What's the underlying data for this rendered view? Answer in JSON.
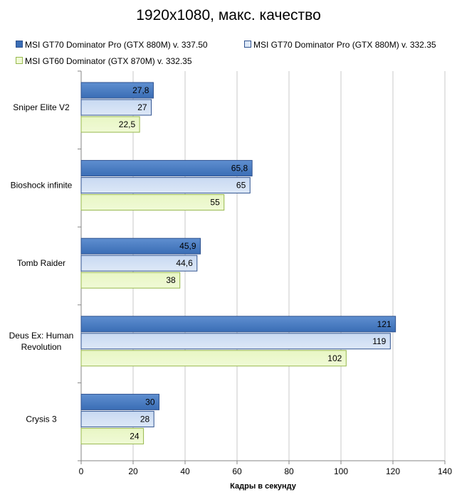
{
  "chart_data": {
    "type": "bar",
    "orientation": "horizontal",
    "title": "1920x1080, макс. качество",
    "xlabel": "Кадры  в секунду",
    "ylabel": "",
    "xlim": [
      0,
      140
    ],
    "x_ticks": [
      0,
      20,
      40,
      60,
      80,
      100,
      120,
      140
    ],
    "grid": true,
    "legend_position": "top",
    "categories": [
      {
        "lines": [
          "Sniper Elite V2"
        ]
      },
      {
        "lines": [
          "Bioshock infinite"
        ]
      },
      {
        "lines": [
          "Tomb Raider"
        ]
      },
      {
        "lines": [
          "Deus Ex: Human",
          "Revolution"
        ]
      },
      {
        "lines": [
          "Crysis 3"
        ]
      }
    ],
    "series": [
      {
        "name": "MSI GT70 Dominator Pro (GTX 880M) v. 337.50",
        "values": [
          27.8,
          65.8,
          45.9,
          121,
          30
        ],
        "labels": [
          "27,8",
          "65,8",
          "45,9",
          "121",
          "30"
        ],
        "color": "#3a6db5",
        "color_light": "#5f8fd0",
        "stroke": "#2f528f"
      },
      {
        "name": "MSI GT70 Dominator Pro (GTX 880M) v. 332.35",
        "values": [
          27,
          65,
          44.6,
          119,
          28
        ],
        "labels": [
          "27",
          "65",
          "44,6",
          "119",
          "28"
        ],
        "color": "#dde8f7",
        "color_light": "#c8d9f2",
        "stroke": "#2f528f"
      },
      {
        "name": "MSI GT60 Dominator (GTX 870M) v. 332.35",
        "values": [
          22.5,
          55,
          38,
          102,
          24
        ],
        "labels": [
          "22,5",
          "55",
          "38",
          "102",
          "24"
        ],
        "color": "#f0fad6",
        "color_light": "#e8f6c4",
        "stroke": "#97b84c"
      }
    ]
  }
}
